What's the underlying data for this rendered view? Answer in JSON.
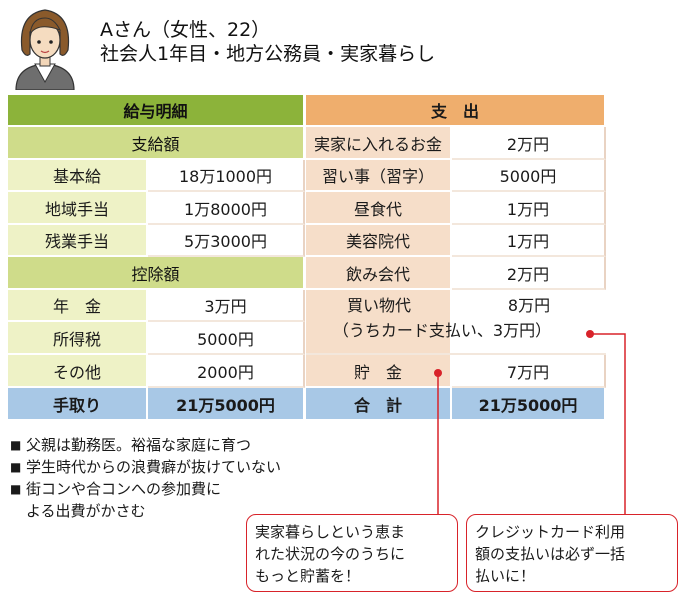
{
  "persona": {
    "line1": "Aさん（女性、22）",
    "line2": "社会人1年目・地方公務員・実家暮らし"
  },
  "salary": {
    "header": "給与明細",
    "pay_header": "支給額",
    "pay_items": [
      {
        "label": "基本給",
        "value": "18万1000円"
      },
      {
        "label": "地域手当",
        "value": "1万8000円"
      },
      {
        "label": "残業手当",
        "value": "5万3000円"
      }
    ],
    "deduct_header": "控除額",
    "deduct_items": [
      {
        "label": "年　金",
        "value": "3万円"
      },
      {
        "label": "所得税",
        "value": "5000円"
      },
      {
        "label": "その他",
        "value": "2000円"
      }
    ],
    "total_label": "手取り",
    "total_value": "21万5000円"
  },
  "expenses": {
    "header": "支　出",
    "items": [
      {
        "label": "実家に入れるお金",
        "value": "2万円"
      },
      {
        "label": "習い事（習字）",
        "value": "5000円"
      },
      {
        "label": "昼食代",
        "value": "1万円"
      },
      {
        "label": "美容院代",
        "value": "1万円"
      },
      {
        "label": "飲み会代",
        "value": "2万円"
      },
      {
        "label": "買い物代",
        "value": "8万円",
        "note": "（うちカード支払い、3万円）"
      },
      {
        "label": "貯　金",
        "value": "7万円"
      }
    ],
    "total_label": "合　計",
    "total_value": "21万5000円"
  },
  "notes": [
    "父親は勤務医。裕福な家庭に育つ",
    "学生時代からの浪費癖が抜けていない",
    "街コンや合コンへの参加費に",
    "よる出費がかさむ"
  ],
  "callouts": [
    {
      "lines": [
        "実家暮らしという恵ま",
        "れた状況の今のうちに",
        "もっと貯蓄を！"
      ]
    },
    {
      "lines": [
        "クレジットカード利用",
        "額の支払いは必ず一括",
        "払いに！"
      ]
    }
  ],
  "colors": {
    "salary_header": "#8cb33a",
    "salary_subheader": "#cfdc8a",
    "expense_header": "#efae6d",
    "total": "#a8c8e6",
    "callout": "#d8232a"
  },
  "icons": [
    "person-avatar-icon",
    "bullet-square-icon",
    "callout-dot-icon"
  ]
}
